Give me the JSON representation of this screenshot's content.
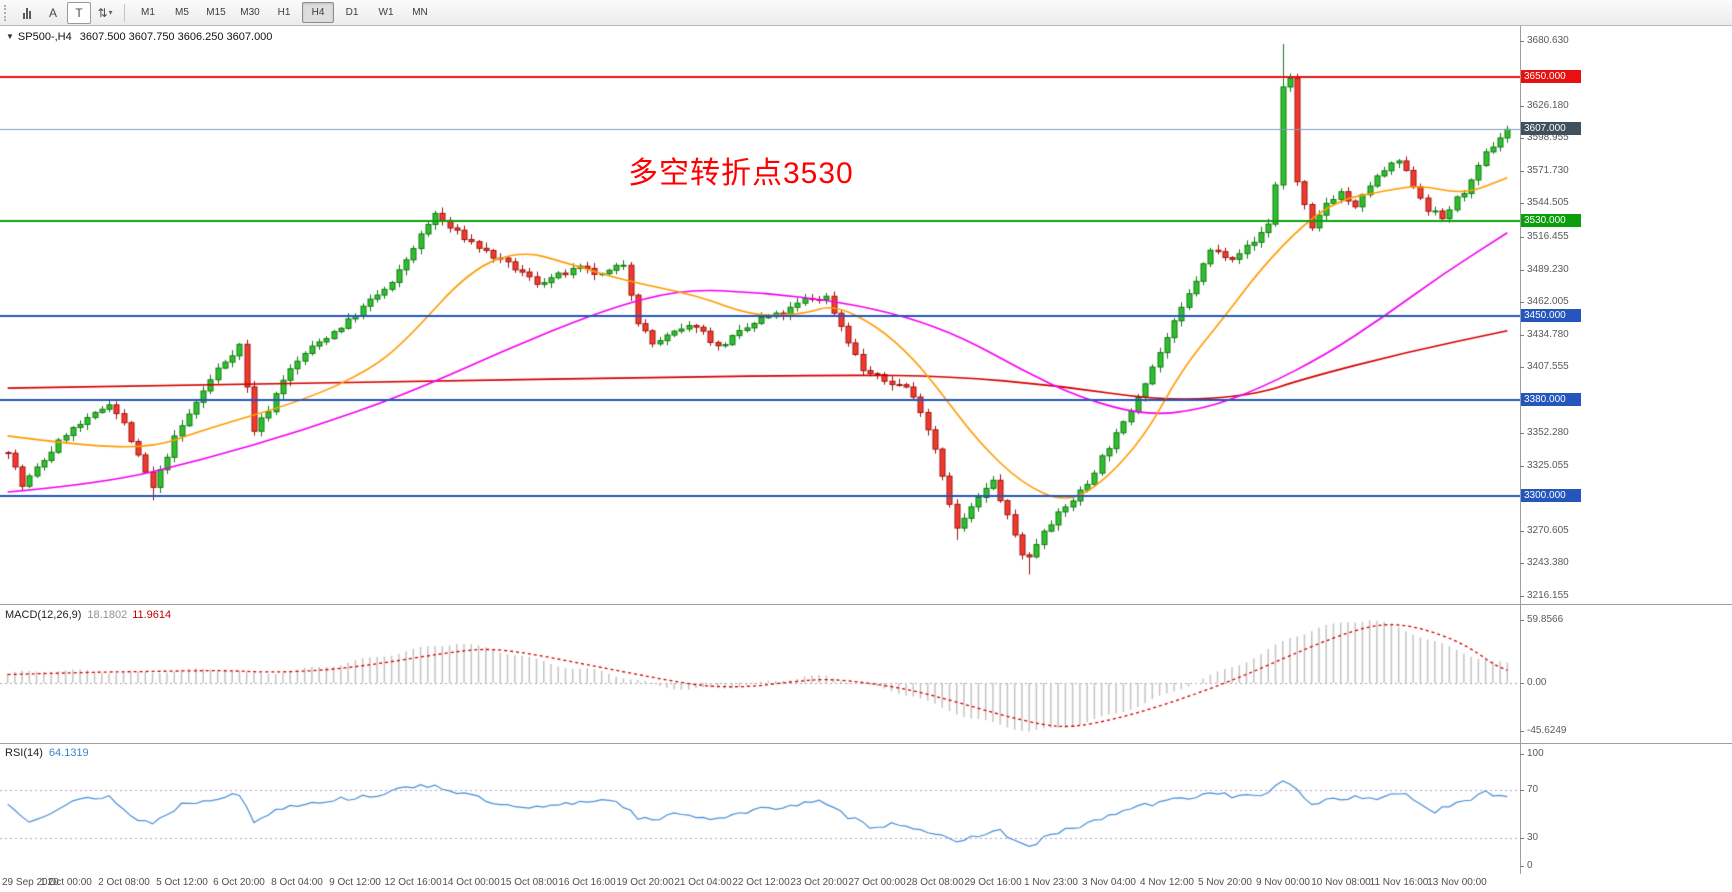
{
  "toolbar": {
    "tools": [
      {
        "name": "chart-bars-icon",
        "type": "bars"
      },
      {
        "name": "cursor-letter-a-icon",
        "glyph": "A"
      },
      {
        "name": "text-tool-icon",
        "glyph": "T",
        "boxed": true
      },
      {
        "name": "arrow-tools-icon",
        "glyph": "⇅",
        "caret": "▾"
      }
    ],
    "timeframes": [
      "M1",
      "M5",
      "M15",
      "M30",
      "H1",
      "H4",
      "D1",
      "W1",
      "MN"
    ],
    "active_timeframe": "H4"
  },
  "main": {
    "expander": "▼",
    "symbol": "SP500-,H4",
    "ohlc": "3607.500 3607.750 3606.250 3607.000",
    "annotation": {
      "text": "多空转折点3530",
      "color": "#ff0000"
    },
    "axis_labels": [
      "3680.630",
      "3626.180",
      "3598.955",
      "3571.730",
      "3544.505",
      "3516.455",
      "3489.230",
      "3462.005",
      "3434.780",
      "3407.555",
      "3352.280",
      "3325.055",
      "3270.605",
      "3243.380",
      "3216.155"
    ],
    "hlines": [
      {
        "price": 3650.0,
        "label": "3650.000",
        "color": "#e81010"
      },
      {
        "price": 3530.0,
        "label": "3530.000",
        "color": "#0ba00b"
      },
      {
        "price": 3450.0,
        "label": "3450.000",
        "color": "#2456bd"
      },
      {
        "price": 3380.0,
        "label": "3380.000",
        "color": "#2456bd"
      },
      {
        "price": 3300.0,
        "label": "3300.000",
        "color": "#2456bd"
      }
    ],
    "current_price": {
      "price": 3607.0,
      "label": "3607.000",
      "line_color": "#7f9db9",
      "badge_color": "#40505c"
    }
  },
  "macd": {
    "header": "MACD(12,26,9)",
    "value_main": "18.1802",
    "value_signal": "11.9614",
    "axis_labels": [
      {
        "v": 59.8566,
        "text": "59.8566"
      },
      {
        "v": 0,
        "text": "0.00"
      },
      {
        "v": -45.6249,
        "text": "-45.6249"
      }
    ]
  },
  "rsi": {
    "header": "RSI(14)",
    "value": "64.1319",
    "axis_labels": [
      {
        "v": 100,
        "text": "100"
      },
      {
        "v": 70,
        "text": "70"
      },
      {
        "v": 30,
        "text": "30"
      },
      {
        "v": 0,
        "text": "0"
      }
    ],
    "levels": [
      70,
      30
    ]
  },
  "time_axis": [
    "29 Sep 2020",
    "1 Oct 00:00",
    "2 Oct 08:00",
    "5 Oct 12:00",
    "6 Oct 20:00",
    "8 Oct 04:00",
    "9 Oct 12:00",
    "12 Oct 16:00",
    "14 Oct 00:00",
    "15 Oct 08:00",
    "16 Oct 16:00",
    "19 Oct 20:00",
    "21 Oct 04:00",
    "22 Oct 12:00",
    "23 Oct 20:00",
    "27 Oct 00:00",
    "28 Oct 08:00",
    "29 Oct 16:00",
    "1 Nov 23:00",
    "3 Nov 04:00",
    "4 Nov 12:00",
    "5 Nov 20:00",
    "9 Nov 00:00",
    "10 Nov 08:00",
    "11 Nov 16:00",
    "13 Nov 00:00"
  ],
  "chart_data": {
    "type": "candlestick",
    "bars": 208,
    "bars_per_label": 8,
    "ylim_main": [
      3211,
      3693
    ],
    "ylim_macd": [
      -54,
      72
    ],
    "ylim_rsi": [
      0,
      100
    ],
    "colors": {
      "up": "#2fbf2f",
      "up_edge": "#157a15",
      "down": "#f23b2e",
      "down_edge": "#9e1510",
      "ma_fast": "#ff9c00",
      "ma_mid": "#f500f5",
      "ma_slow": "#d40000",
      "macd_hist": "#c4c4c4",
      "macd_signal": "#d40000",
      "rsi": "#4a90d9"
    },
    "price_path": [
      [
        0,
        3338
      ],
      [
        2,
        3308
      ],
      [
        5,
        3330
      ],
      [
        8,
        3352
      ],
      [
        11,
        3363
      ],
      [
        14,
        3378
      ],
      [
        16,
        3360
      ],
      [
        18,
        3332
      ],
      [
        20,
        3306
      ],
      [
        23,
        3348
      ],
      [
        26,
        3378
      ],
      [
        29,
        3406
      ],
      [
        32,
        3426
      ],
      [
        34,
        3355
      ],
      [
        36,
        3372
      ],
      [
        38,
        3398
      ],
      [
        41,
        3419
      ],
      [
        44,
        3433
      ],
      [
        47,
        3446
      ],
      [
        50,
        3463
      ],
      [
        53,
        3477
      ],
      [
        56,
        3508
      ],
      [
        59,
        3536
      ],
      [
        61,
        3524
      ],
      [
        64,
        3512
      ],
      [
        67,
        3500
      ],
      [
        70,
        3490
      ],
      [
        73,
        3478
      ],
      [
        76,
        3484
      ],
      [
        79,
        3490
      ],
      [
        82,
        3484
      ],
      [
        85,
        3494
      ],
      [
        87,
        3446
      ],
      [
        89,
        3427
      ],
      [
        92,
        3436
      ],
      [
        95,
        3443
      ],
      [
        98,
        3424
      ],
      [
        101,
        3436
      ],
      [
        104,
        3448
      ],
      [
        107,
        3452
      ],
      [
        110,
        3464
      ],
      [
        113,
        3466
      ],
      [
        115,
        3442
      ],
      [
        118,
        3405
      ],
      [
        121,
        3396
      ],
      [
        124,
        3391
      ],
      [
        126,
        3372
      ],
      [
        128,
        3340
      ],
      [
        131,
        3272
      ],
      [
        134,
        3298
      ],
      [
        136,
        3312
      ],
      [
        138,
        3282
      ],
      [
        140,
        3252
      ],
      [
        141,
        3248
      ],
      [
        143,
        3272
      ],
      [
        146,
        3290
      ],
      [
        149,
        3310
      ],
      [
        151,
        3332
      ],
      [
        154,
        3360
      ],
      [
        156,
        3384
      ],
      [
        158,
        3408
      ],
      [
        161,
        3444
      ],
      [
        163,
        3468
      ],
      [
        166,
        3505
      ],
      [
        169,
        3500
      ],
      [
        172,
        3512
      ],
      [
        174,
        3528
      ],
      [
        175,
        3560
      ],
      [
        176,
        3642
      ],
      [
        177,
        3650
      ],
      [
        178,
        3562
      ],
      [
        180,
        3522
      ],
      [
        182,
        3545
      ],
      [
        184,
        3554
      ],
      [
        186,
        3540
      ],
      [
        188,
        3560
      ],
      [
        190,
        3572
      ],
      [
        192,
        3580
      ],
      [
        194,
        3560
      ],
      [
        196,
        3540
      ],
      [
        198,
        3532
      ],
      [
        200,
        3548
      ],
      [
        202,
        3562
      ],
      [
        204,
        3586
      ],
      [
        206,
        3600
      ],
      [
        207,
        3607
      ]
    ],
    "wick_overrides": {
      "high": [
        [
          176,
          3678
        ]
      ],
      "low": [
        [
          20,
          3296
        ],
        [
          131,
          3263
        ],
        [
          141,
          3234
        ]
      ]
    },
    "ma_fast_path": [
      [
        0,
        3350
      ],
      [
        10,
        3342
      ],
      [
        20,
        3340
      ],
      [
        27,
        3355
      ],
      [
        41,
        3380
      ],
      [
        50,
        3405
      ],
      [
        55,
        3430
      ],
      [
        64,
        3490
      ],
      [
        71,
        3505
      ],
      [
        77,
        3495
      ],
      [
        85,
        3480
      ],
      [
        95,
        3468
      ],
      [
        103,
        3450
      ],
      [
        110,
        3452
      ],
      [
        114,
        3460
      ],
      [
        120,
        3442
      ],
      [
        125,
        3415
      ],
      [
        129,
        3385
      ],
      [
        134,
        3345
      ],
      [
        140,
        3310
      ],
      [
        146,
        3294
      ],
      [
        151,
        3310
      ],
      [
        157,
        3350
      ],
      [
        162,
        3405
      ],
      [
        168,
        3450
      ],
      [
        173,
        3490
      ],
      [
        179,
        3528
      ],
      [
        184,
        3548
      ],
      [
        190,
        3555
      ],
      [
        195,
        3560
      ],
      [
        201,
        3552
      ],
      [
        207,
        3566
      ]
    ],
    "ma_mid_path": [
      [
        0,
        3303
      ],
      [
        13,
        3310
      ],
      [
        27,
        3330
      ],
      [
        41,
        3355
      ],
      [
        55,
        3385
      ],
      [
        68,
        3420
      ],
      [
        82,
        3455
      ],
      [
        93,
        3473
      ],
      [
        104,
        3470
      ],
      [
        115,
        3462
      ],
      [
        124,
        3450
      ],
      [
        132,
        3432
      ],
      [
        140,
        3405
      ],
      [
        148,
        3382
      ],
      [
        157,
        3367
      ],
      [
        165,
        3372
      ],
      [
        173,
        3390
      ],
      [
        182,
        3418
      ],
      [
        190,
        3450
      ],
      [
        198,
        3485
      ],
      [
        207,
        3520
      ]
    ],
    "ma_slow_path": [
      [
        0,
        3390
      ],
      [
        30,
        3393
      ],
      [
        60,
        3396
      ],
      [
        90,
        3399
      ],
      [
        115,
        3401
      ],
      [
        130,
        3400
      ],
      [
        145,
        3392
      ],
      [
        160,
        3379
      ],
      [
        172,
        3384
      ],
      [
        179,
        3398
      ],
      [
        193,
        3420
      ],
      [
        207,
        3438
      ]
    ],
    "macd_hist_path": [
      [
        0,
        9
      ],
      [
        6,
        12
      ],
      [
        12,
        11
      ],
      [
        18,
        9
      ],
      [
        24,
        12
      ],
      [
        30,
        14
      ],
      [
        34,
        8
      ],
      [
        40,
        12
      ],
      [
        46,
        18
      ],
      [
        52,
        26
      ],
      [
        58,
        34
      ],
      [
        62,
        38
      ],
      [
        66,
        33
      ],
      [
        70,
        27
      ],
      [
        74,
        20
      ],
      [
        78,
        14
      ],
      [
        82,
        11
      ],
      [
        86,
        4
      ],
      [
        90,
        -3
      ],
      [
        94,
        -6
      ],
      [
        98,
        -5
      ],
      [
        102,
        -2
      ],
      [
        106,
        2
      ],
      [
        110,
        6
      ],
      [
        113,
        6
      ],
      [
        117,
        0
      ],
      [
        121,
        -6
      ],
      [
        125,
        -12
      ],
      [
        129,
        -24
      ],
      [
        133,
        -33
      ],
      [
        137,
        -40
      ],
      [
        141,
        -45.6
      ],
      [
        145,
        -43
      ],
      [
        149,
        -37
      ],
      [
        153,
        -29
      ],
      [
        157,
        -19
      ],
      [
        161,
        -8
      ],
      [
        165,
        4
      ],
      [
        169,
        15
      ],
      [
        173,
        27
      ],
      [
        177,
        43
      ],
      [
        181,
        52
      ],
      [
        185,
        58
      ],
      [
        188,
        59.9
      ],
      [
        191,
        55
      ],
      [
        194,
        47
      ],
      [
        197,
        39
      ],
      [
        200,
        31
      ],
      [
        203,
        24
      ],
      [
        205,
        20
      ],
      [
        207,
        18.2
      ]
    ],
    "macd_signal_path": [
      [
        0,
        8
      ],
      [
        10,
        10
      ],
      [
        20,
        11
      ],
      [
        30,
        12
      ],
      [
        36,
        10
      ],
      [
        44,
        12
      ],
      [
        52,
        19
      ],
      [
        60,
        28
      ],
      [
        66,
        33
      ],
      [
        72,
        28
      ],
      [
        78,
        20
      ],
      [
        84,
        12
      ],
      [
        90,
        4
      ],
      [
        96,
        -3
      ],
      [
        102,
        -4
      ],
      [
        108,
        1
      ],
      [
        113,
        4
      ],
      [
        119,
        0
      ],
      [
        125,
        -7
      ],
      [
        131,
        -18
      ],
      [
        137,
        -30
      ],
      [
        143,
        -40
      ],
      [
        147,
        -42
      ],
      [
        153,
        -34
      ],
      [
        159,
        -22
      ],
      [
        165,
        -8
      ],
      [
        171,
        8
      ],
      [
        177,
        26
      ],
      [
        183,
        43
      ],
      [
        188,
        54
      ],
      [
        192,
        56
      ],
      [
        196,
        50
      ],
      [
        200,
        40
      ],
      [
        203,
        28
      ],
      [
        205,
        18
      ],
      [
        207,
        12
      ]
    ],
    "rsi_path": [
      [
        0,
        58
      ],
      [
        3,
        45
      ],
      [
        6,
        52
      ],
      [
        10,
        62
      ],
      [
        14,
        65
      ],
      [
        17,
        48
      ],
      [
        20,
        42
      ],
      [
        24,
        58
      ],
      [
        29,
        64
      ],
      [
        32,
        66
      ],
      [
        34,
        44
      ],
      [
        38,
        56
      ],
      [
        42,
        60
      ],
      [
        47,
        63
      ],
      [
        53,
        68
      ],
      [
        57,
        75
      ],
      [
        60,
        72
      ],
      [
        64,
        65
      ],
      [
        68,
        57
      ],
      [
        72,
        54
      ],
      [
        77,
        58
      ],
      [
        80,
        61
      ],
      [
        84,
        62
      ],
      [
        87,
        47
      ],
      [
        89,
        44
      ],
      [
        93,
        51
      ],
      [
        97,
        46
      ],
      [
        101,
        50
      ],
      [
        105,
        55
      ],
      [
        109,
        58
      ],
      [
        112,
        60
      ],
      [
        116,
        48
      ],
      [
        119,
        40
      ],
      [
        123,
        42
      ],
      [
        127,
        36
      ],
      [
        131,
        25
      ],
      [
        134,
        33
      ],
      [
        137,
        36
      ],
      [
        139,
        28
      ],
      [
        141,
        22
      ],
      [
        143,
        30
      ],
      [
        146,
        36
      ],
      [
        149,
        42
      ],
      [
        152,
        48
      ],
      [
        155,
        55
      ],
      [
        158,
        58
      ],
      [
        161,
        62
      ],
      [
        164,
        65
      ],
      [
        167,
        68
      ],
      [
        170,
        64
      ],
      [
        173,
        66
      ],
      [
        176,
        76
      ],
      [
        178,
        70
      ],
      [
        180,
        58
      ],
      [
        182,
        62
      ],
      [
        185,
        64
      ],
      [
        188,
        62
      ],
      [
        191,
        66
      ],
      [
        193,
        68
      ],
      [
        195,
        58
      ],
      [
        197,
        52
      ],
      [
        199,
        56
      ],
      [
        202,
        62
      ],
      [
        204,
        68
      ],
      [
        206,
        66
      ],
      [
        207,
        64.1
      ]
    ]
  }
}
